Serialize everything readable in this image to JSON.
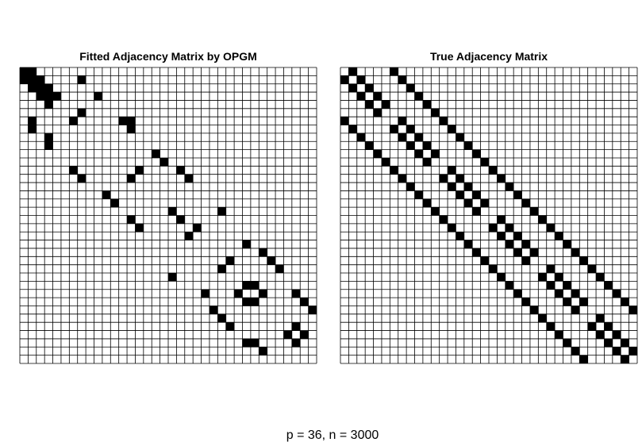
{
  "caption": "p = 36, n = 3000",
  "chart_data": [
    {
      "type": "heatmap",
      "title": "Fitted Adjacency Matrix by OPGM",
      "size": 36,
      "grid": true,
      "filled_color": "#000000",
      "empty_color": "#ffffff",
      "filled_cells": [
        [
          0,
          0
        ],
        [
          1,
          1
        ],
        [
          2,
          2
        ],
        [
          3,
          3
        ],
        [
          0,
          1
        ],
        [
          1,
          2
        ],
        [
          2,
          3
        ],
        [
          1,
          0
        ],
        [
          2,
          1
        ],
        [
          3,
          2
        ],
        [
          3,
          4
        ],
        [
          4,
          3
        ],
        [
          1,
          7
        ],
        [
          7,
          1
        ],
        [
          3,
          9
        ],
        [
          9,
          3
        ],
        [
          6,
          1
        ],
        [
          6,
          6
        ],
        [
          6,
          12
        ],
        [
          6,
          13
        ],
        [
          5,
          7
        ],
        [
          7,
          13
        ],
        [
          8,
          3
        ],
        [
          10,
          16
        ],
        [
          11,
          17
        ],
        [
          12,
          6
        ],
        [
          13,
          7
        ],
        [
          12,
          14
        ],
        [
          13,
          13
        ],
        [
          12,
          19
        ],
        [
          13,
          20
        ],
        [
          15,
          10
        ],
        [
          16,
          11
        ],
        [
          17,
          18
        ],
        [
          17,
          24
        ],
        [
          18,
          13
        ],
        [
          18,
          19
        ],
        [
          19,
          14
        ],
        [
          20,
          20
        ],
        [
          19,
          21
        ],
        [
          21,
          27
        ],
        [
          22,
          29
        ],
        [
          23,
          30
        ],
        [
          24,
          31
        ],
        [
          23,
          25
        ],
        [
          24,
          24
        ],
        [
          25,
          18
        ],
        [
          26,
          27
        ],
        [
          26,
          28
        ],
        [
          27,
          26
        ],
        [
          27,
          29
        ],
        [
          28,
          27
        ],
        [
          28,
          28
        ],
        [
          27,
          22
        ],
        [
          27,
          33
        ],
        [
          28,
          34
        ],
        [
          29,
          35
        ],
        [
          29,
          23
        ],
        [
          30,
          24
        ],
        [
          31,
          25
        ],
        [
          32,
          32
        ],
        [
          32,
          34
        ],
        [
          33,
          33
        ],
        [
          31,
          33
        ],
        [
          33,
          27
        ],
        [
          33,
          28
        ],
        [
          34,
          29
        ]
      ]
    },
    {
      "type": "heatmap",
      "title": "True Adjacency Matrix",
      "size": 36,
      "grid": true,
      "filled_color": "#000000",
      "empty_color": "#ffffff",
      "pattern": "block-banded",
      "blocks": [
        [
          0,
          5
        ],
        [
          6,
          11
        ],
        [
          12,
          17
        ],
        [
          18,
          23
        ],
        [
          24,
          29
        ],
        [
          30,
          35
        ]
      ],
      "band_offsets": [
        1,
        6
      ]
    }
  ]
}
